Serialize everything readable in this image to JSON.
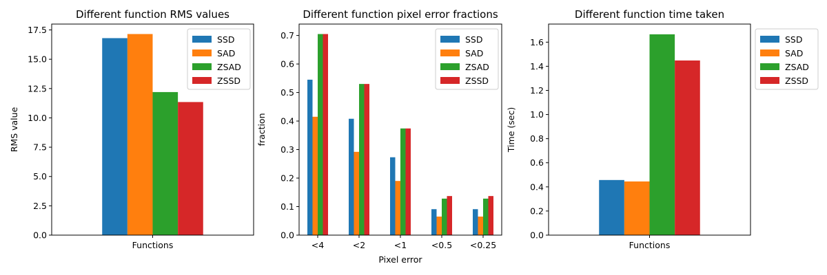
{
  "colors": {
    "SSD": "#1f77b4",
    "SAD": "#ff7f0e",
    "ZSAD": "#2ca02c",
    "ZSSD": "#d62728"
  },
  "chart_data": [
    {
      "type": "bar",
      "title": "Different function RMS values",
      "xlabel": "",
      "ylabel": "RMS value",
      "categories": [
        "Functions"
      ],
      "ylim": [
        0,
        18
      ],
      "yticks": [
        "0.0",
        "2.5",
        "5.0",
        "7.5",
        "10.0",
        "12.5",
        "15.0",
        "17.5"
      ],
      "grid": false,
      "legend": "top-right",
      "series": [
        {
          "name": "SSD",
          "values": [
            16.8
          ]
        },
        {
          "name": "SAD",
          "values": [
            17.15
          ]
        },
        {
          "name": "ZSAD",
          "values": [
            12.2
          ]
        },
        {
          "name": "ZSSD",
          "values": [
            11.35
          ]
        }
      ]
    },
    {
      "type": "bar",
      "title": "Different function pixel error fractions",
      "xlabel": "Pixel error",
      "ylabel": "fraction",
      "categories": [
        "<4",
        "<2",
        "<1",
        "<0.5",
        "<0.25"
      ],
      "ylim": [
        0,
        0.74
      ],
      "yticks": [
        "0.0",
        "0.1",
        "0.2",
        "0.3",
        "0.4",
        "0.5",
        "0.6",
        "0.7"
      ],
      "grid": false,
      "legend": "top-right",
      "series": [
        {
          "name": "SSD",
          "values": [
            0.545,
            0.408,
            0.273,
            0.091,
            0.091
          ]
        },
        {
          "name": "SAD",
          "values": [
            0.415,
            0.292,
            0.19,
            0.065,
            0.065
          ]
        },
        {
          "name": "ZSAD",
          "values": [
            0.705,
            0.53,
            0.374,
            0.128,
            0.128
          ]
        },
        {
          "name": "ZSSD",
          "values": [
            0.705,
            0.53,
            0.374,
            0.137,
            0.137
          ]
        }
      ]
    },
    {
      "type": "bar",
      "title": "Different function time taken",
      "xlabel": "",
      "ylabel": "Time (sec)",
      "categories": [
        "Functions"
      ],
      "ylim": [
        0,
        1.75
      ],
      "yticks": [
        "0.0",
        "0.2",
        "0.4",
        "0.6",
        "0.8",
        "1.0",
        "1.2",
        "1.4",
        "1.6"
      ],
      "grid": false,
      "legend": "outside-right",
      "series": [
        {
          "name": "SSD",
          "values": [
            0.457
          ]
        },
        {
          "name": "SAD",
          "values": [
            0.445
          ]
        },
        {
          "name": "ZSAD",
          "values": [
            1.665
          ]
        },
        {
          "name": "ZSSD",
          "values": [
            1.448
          ]
        }
      ]
    }
  ]
}
